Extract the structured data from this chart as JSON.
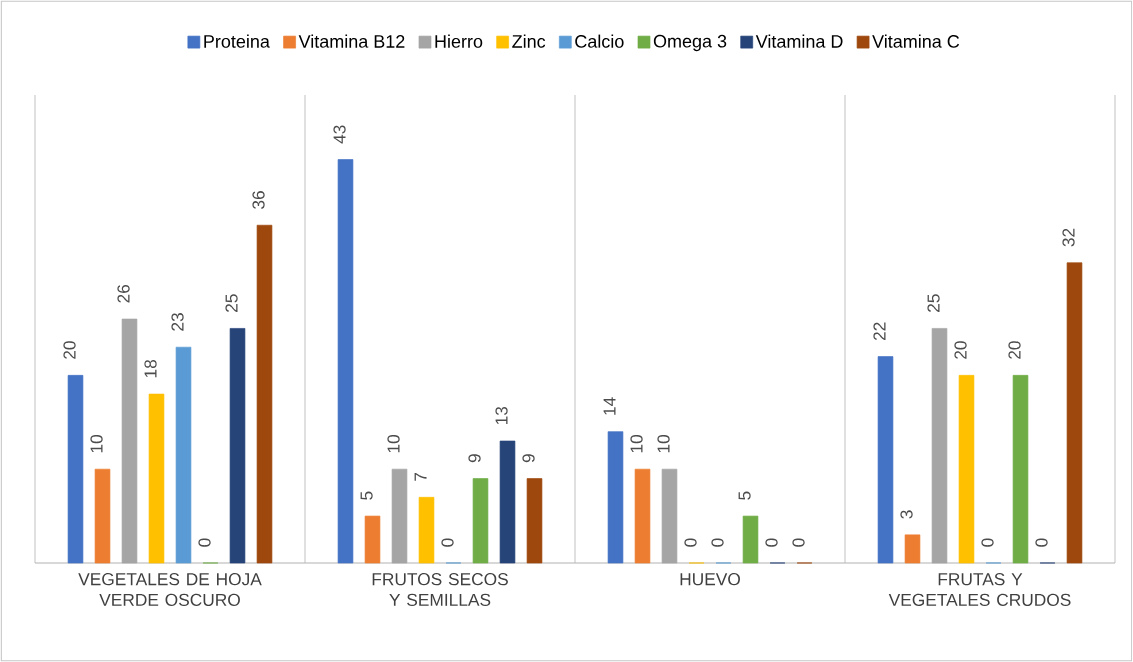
{
  "chart_data": {
    "type": "bar",
    "categories": [
      "VEGETALES DE HOJA VERDE OSCURO",
      "FRUTOS SECOS Y SEMILLAS",
      "HUEVO",
      "FRUTAS Y VEGETALES CRUDOS"
    ],
    "series": [
      {
        "name": "Proteina",
        "color": "#4472c4",
        "values": [
          20,
          43,
          14,
          22
        ]
      },
      {
        "name": "Vitamina B12",
        "color": "#ed7d31",
        "values": [
          10,
          5,
          10,
          3
        ]
      },
      {
        "name": "Hierro",
        "color": "#a5a5a5",
        "values": [
          26,
          10,
          10,
          25
        ]
      },
      {
        "name": "Zinc",
        "color": "#ffc000",
        "values": [
          18,
          7,
          0,
          20
        ]
      },
      {
        "name": "Calcio",
        "color": "#5b9bd5",
        "values": [
          23,
          0,
          0,
          0
        ]
      },
      {
        "name": "Omega 3",
        "color": "#70ad47",
        "values": [
          0,
          9,
          5,
          20
        ]
      },
      {
        "name": "Vitamina D",
        "color": "#264478",
        "values": [
          25,
          13,
          0,
          0
        ]
      },
      {
        "name": "Vitamina C",
        "color": "#9e480e",
        "values": [
          36,
          9,
          0,
          32
        ]
      }
    ],
    "data_labels": true,
    "grid": "x",
    "legend": "top"
  }
}
